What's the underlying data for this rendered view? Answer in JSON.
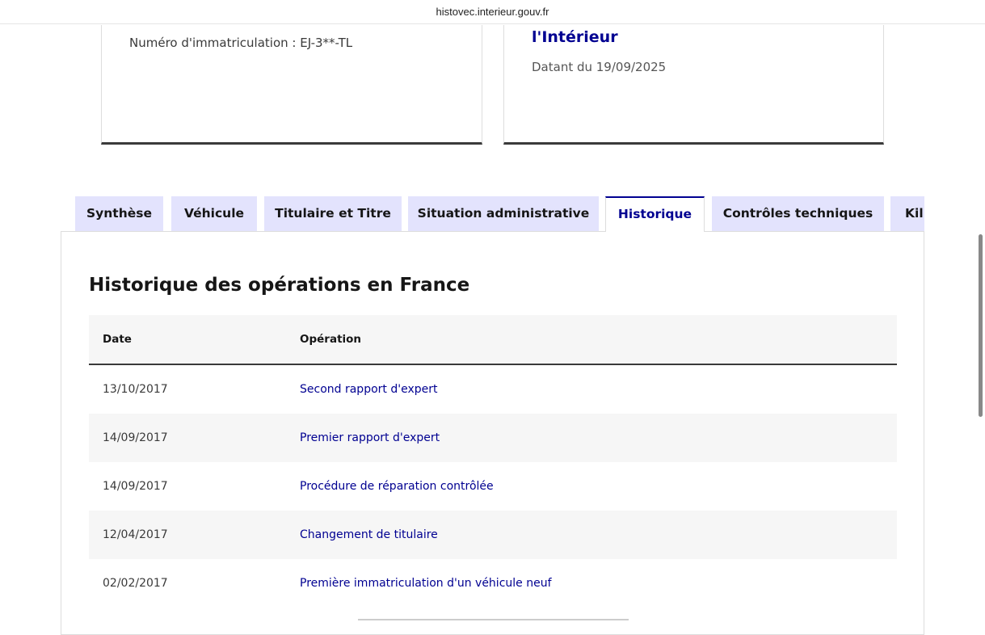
{
  "browser": {
    "url": "histovec.interieur.gouv.fr"
  },
  "cards": {
    "registration": "Numéro d'immatriculation : EJ-3**-TL",
    "organization": "l'Intérieur",
    "dated": "Datant du 19/09/2025"
  },
  "tabs": [
    {
      "label": "Synthèse"
    },
    {
      "label": "Véhicule"
    },
    {
      "label": "Titulaire et Titre"
    },
    {
      "label": "Situation administrative"
    },
    {
      "label": "Historique",
      "active": true
    },
    {
      "label": "Contrôles techniques"
    },
    {
      "label": "Kil"
    }
  ],
  "section": {
    "title": "Historique des opérations en France"
  },
  "table": {
    "headers": [
      "Date",
      "Opération"
    ],
    "rows": [
      {
        "date": "13/10/2017",
        "operation": "Second rapport d'expert"
      },
      {
        "date": "14/09/2017",
        "operation": "Premier rapport d'expert"
      },
      {
        "date": "14/09/2017",
        "operation": "Procédure de réparation contrôlée"
      },
      {
        "date": "12/04/2017",
        "operation": "Changement de titulaire"
      },
      {
        "date": "02/02/2017",
        "operation": "Première immatriculation d'un véhicule neuf"
      }
    ]
  },
  "colors": {
    "accent": "#000091",
    "tab_bg": "#e3e3fd",
    "row_alt": "#f6f6f6"
  }
}
